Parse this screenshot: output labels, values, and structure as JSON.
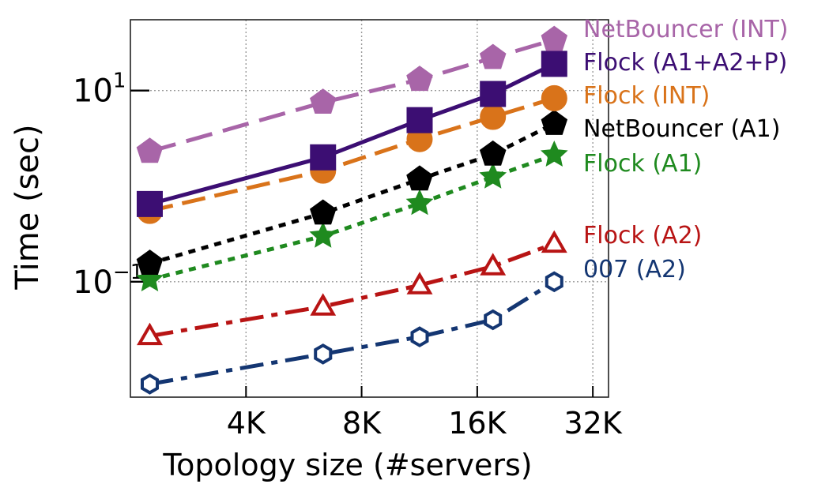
{
  "chart_data": {
    "type": "line",
    "xlabel": "Topology size (#servers)",
    "ylabel": "Time (sec)",
    "x_scale": "log2",
    "y_scale": "log10",
    "xlim": [
      2048,
      36000
    ],
    "ylim": [
      0.0062,
      55
    ],
    "x_ticks": [
      {
        "value": 4096,
        "label": "4K"
      },
      {
        "value": 8192,
        "label": "8K"
      },
      {
        "value": 16384,
        "label": "16K"
      },
      {
        "value": 32768,
        "label": "32K"
      }
    ],
    "y_ticks": [
      {
        "value": 10,
        "label": "10",
        "exp": "1"
      },
      {
        "value": 0.1,
        "label": "10",
        "exp": "−1"
      }
    ],
    "grid": true,
    "x": [
      2300,
      6500,
      11600,
      18000,
      26000
    ],
    "series": [
      {
        "name": "NetBouncer (INT)",
        "color": "#a865a8",
        "dash": "34,14",
        "marker": "pentagon",
        "fill": true,
        "values": [
          2.3,
          7.5,
          13.0,
          22.0,
          34.0
        ]
      },
      {
        "name": "Flock (A1+A2+P)",
        "color": "#3c0e73",
        "dash": "",
        "marker": "square",
        "fill": true,
        "values": [
          0.65,
          2.0,
          4.9,
          9.2,
          19.0
        ]
      },
      {
        "name": "Flock (INT)",
        "color": "#d9731a",
        "dash": "30,12",
        "marker": "circle",
        "fill": true,
        "values": [
          0.55,
          1.45,
          3.1,
          5.3,
          8.3
        ]
      },
      {
        "name": "NetBouncer (A1)",
        "color": "#000000",
        "dash": "9,8",
        "marker": "pentagon",
        "fill": true,
        "values": [
          0.155,
          0.52,
          1.18,
          2.15,
          4.5
        ]
      },
      {
        "name": "Flock (A1)",
        "color": "#1f8a1f",
        "dash": "9,8",
        "marker": "star",
        "fill": true,
        "values": [
          0.105,
          0.3,
          0.66,
          1.25,
          2.12
        ]
      },
      {
        "name": "Flock (A2)",
        "color": "#b81414",
        "dash": "30,10,8,10",
        "marker": "triangle",
        "fill": false,
        "values": [
          0.027,
          0.055,
          0.092,
          0.145,
          0.25
        ]
      },
      {
        "name": "007 (A2)",
        "color": "#143672",
        "dash": "30,10,8,10",
        "marker": "hexagon",
        "fill": false,
        "values": [
          0.0085,
          0.0175,
          0.0265,
          0.04,
          0.1
        ]
      }
    ]
  }
}
